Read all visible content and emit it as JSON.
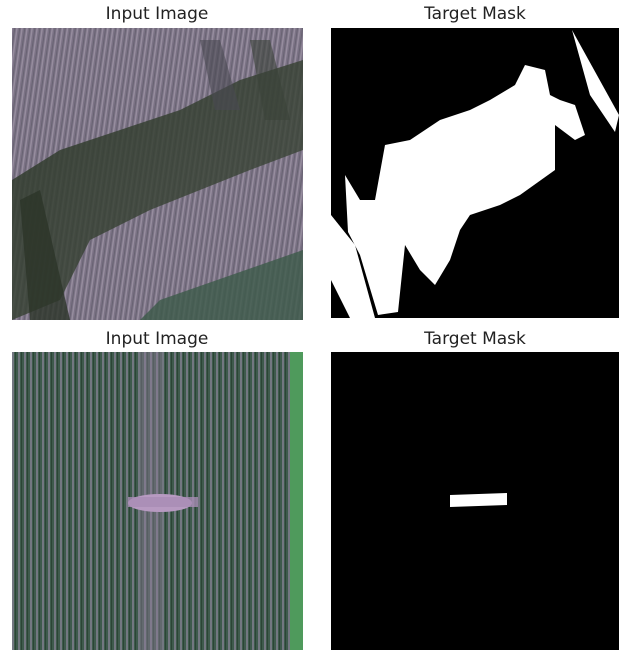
{
  "panels": [
    {
      "title": "Input Image"
    },
    {
      "title": "Target Mask"
    },
    {
      "title": "Input Image"
    },
    {
      "title": "Target Mask"
    }
  ]
}
